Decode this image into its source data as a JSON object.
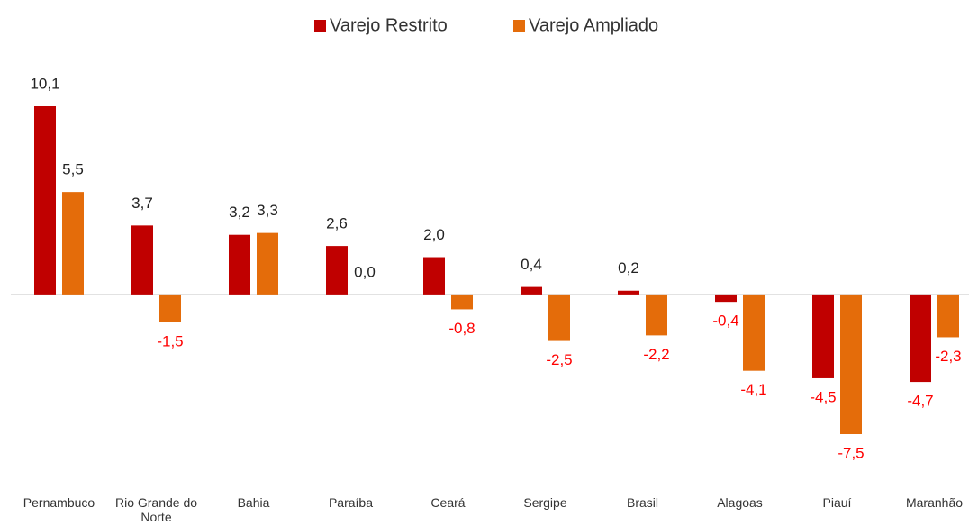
{
  "chart_data": {
    "type": "bar",
    "categories": [
      "Pernambuco",
      "Rio Grande do Norte",
      "Bahia",
      "Paraíba",
      "Ceará",
      "Sergipe",
      "Brasil",
      "Alagoas",
      "Piauí",
      "Maranhão"
    ],
    "series": [
      {
        "name": "Varejo Restrito",
        "color": "#c00000",
        "values": [
          10.1,
          3.7,
          3.2,
          2.6,
          2.0,
          0.4,
          0.2,
          -0.4,
          -4.5,
          -4.7
        ],
        "value_labels": [
          "10,1",
          "3,7",
          "3,2",
          "2,6",
          "2,0",
          "0,4",
          "0,2",
          "-0,4",
          "-4,5",
          "-4,7"
        ]
      },
      {
        "name": "Varejo Ampliado",
        "color": "#e46c0a",
        "values": [
          5.5,
          -1.5,
          3.3,
          0.0,
          -0.8,
          -2.5,
          -2.2,
          -4.1,
          -7.5,
          -2.3
        ],
        "value_labels": [
          "5,5",
          "-1,5",
          "3,3",
          "0,0",
          "-0,8",
          "-2,5",
          "-2,2",
          "-4,1",
          "-7,5",
          "-2,3"
        ]
      }
    ],
    "legend": "top",
    "negative_label_color": "#ff0000"
  }
}
